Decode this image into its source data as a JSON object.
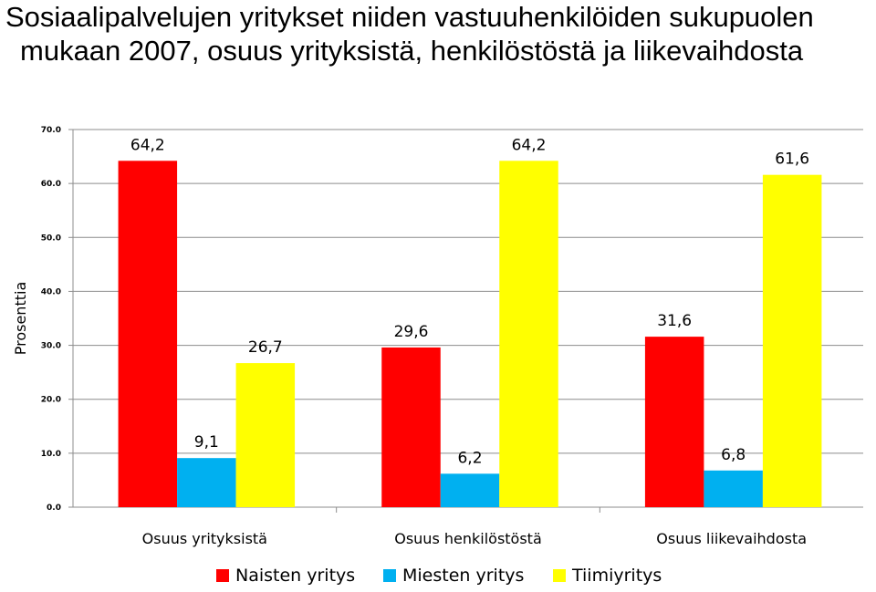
{
  "chart_data": {
    "type": "bar",
    "title_line1": "Sosiaalipalvelujen yritykset niiden vastuuhenkilöiden sukupuolen",
    "title_line2": "mukaan 2007, osuus yrityksistä, henkilöstöstä ja liikevaihdosta",
    "ylabel": "Prosenttia",
    "xlabel": "",
    "ylim": [
      0,
      70
    ],
    "yticks": [
      "0.0",
      "10.0",
      "20.0",
      "30.0",
      "40.0",
      "50.0",
      "60.0",
      "70.0"
    ],
    "grid": true,
    "legend_position": "bottom",
    "categories": [
      "Osuus yrityksistä",
      "Osuus henkilöstöstä",
      "Osuus liikevaihdosta"
    ],
    "series": [
      {
        "name": "Naisten yritys",
        "color": "#ff0000",
        "values": [
          64.2,
          29.6,
          31.6
        ],
        "labels": [
          "64,2",
          "29,6",
          "31,6"
        ]
      },
      {
        "name": "Miesten yritys",
        "color": "#00b0f0",
        "values": [
          9.1,
          6.2,
          6.8
        ],
        "labels": [
          "9,1",
          "6,2",
          "6,8"
        ]
      },
      {
        "name": "Tiimiyritys",
        "color": "#ffff00",
        "values": [
          26.7,
          64.2,
          61.6
        ],
        "labels": [
          "26,7",
          "64,2",
          "61,6"
        ]
      }
    ]
  }
}
